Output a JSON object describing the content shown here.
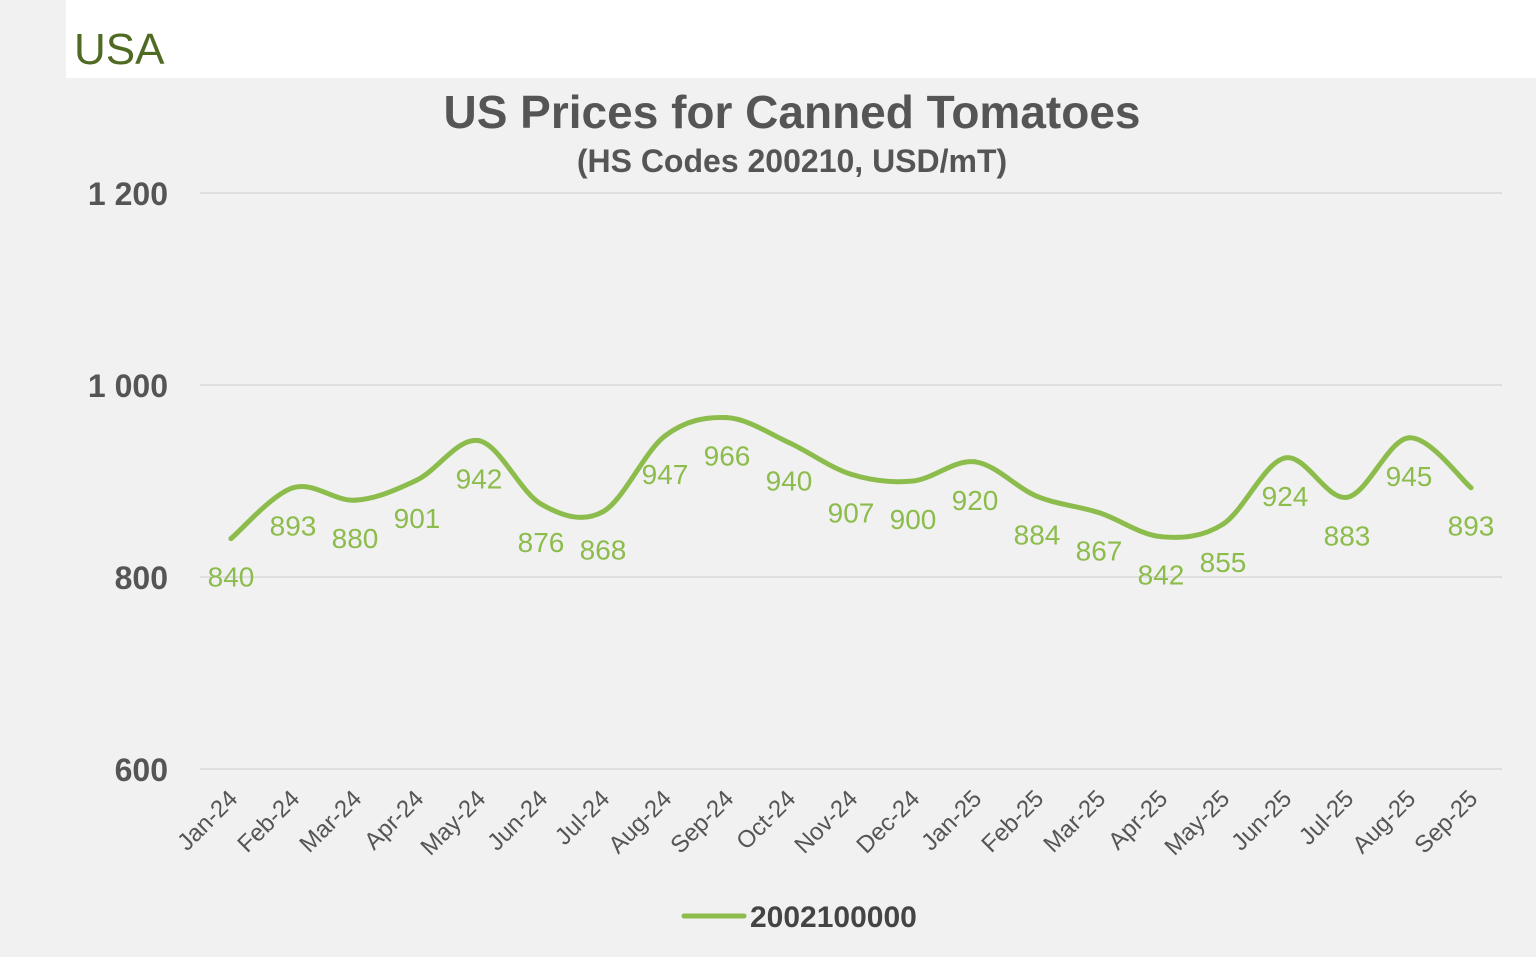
{
  "region": "USA",
  "colors": {
    "series": "#8cbc4c",
    "label": "#8cbc4c",
    "grid": "#d9d9d9",
    "text": "#555555"
  },
  "chart_data": {
    "type": "line",
    "title": "US Prices for Canned Tomatoes",
    "subtitle": "(HS Codes 200210, USD/mT)",
    "xlabel": "",
    "ylabel": "",
    "ylim": [
      600,
      1200
    ],
    "yticks": [
      600,
      800,
      1000,
      1200
    ],
    "ytick_labels": [
      "600",
      "800",
      "1 000",
      "1 200"
    ],
    "grid": true,
    "legend": "bottom",
    "smooth": true,
    "categories": [
      "Jan-24",
      "Feb-24",
      "Mar-24",
      "Apr-24",
      "May-24",
      "Jun-24",
      "Jul-24",
      "Aug-24",
      "Sep-24",
      "Oct-24",
      "Nov-24",
      "Dec-24",
      "Jan-25",
      "Feb-25",
      "Mar-25",
      "Apr-25",
      "May-25",
      "Jun-25",
      "Jul-25",
      "Aug-25",
      "Sep-25"
    ],
    "series": [
      {
        "name": "2002100000",
        "values": [
          840,
          893,
          880,
          901,
          942,
          876,
          868,
          947,
          966,
          940,
          907,
          900,
          920,
          884,
          867,
          842,
          855,
          924,
          883,
          945,
          893
        ]
      }
    ]
  }
}
